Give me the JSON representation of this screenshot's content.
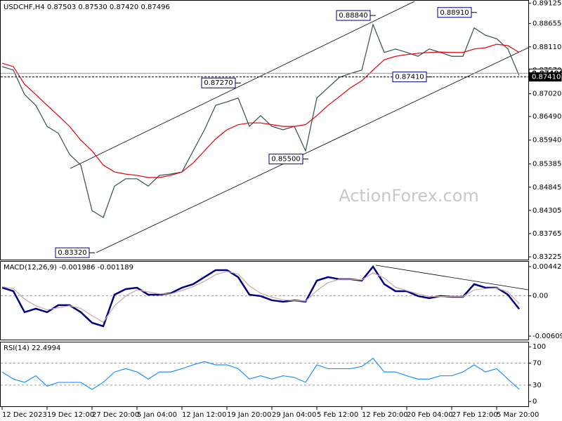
{
  "chart_data": [
    {
      "type": "line",
      "title": "USDCHF,H4  0.87503 0.87530 0.87420 0.87496",
      "watermark": "ActionForex.com",
      "categories": [
        "12 Dec 2023",
        null,
        null,
        null,
        "19 Dec 12:00",
        null,
        null,
        null,
        "27 Dec 20:00",
        null,
        null,
        null,
        "5 Jan 04:00",
        null,
        null,
        null,
        "12 Jan 12:00",
        null,
        null,
        null,
        "19 Jan 20:00",
        null,
        null,
        null,
        "29 Jan 04:00",
        null,
        null,
        null,
        "5 Feb 12:00",
        null,
        null,
        null,
        "12 Feb 20:00",
        null,
        null,
        null,
        "20 Feb 04:00",
        null,
        null,
        null,
        "27 Feb 12:00",
        null,
        null,
        null,
        "5 Mar 20:00",
        null,
        null
      ],
      "series": [
        {
          "color": "#2f4f4f",
          "values": [
            0.8765,
            0.8757,
            0.87,
            0.8675,
            0.8626,
            0.861,
            0.8561,
            0.8536,
            0.843,
            0.8414,
            0.8487,
            0.8504,
            0.8504,
            0.8487,
            0.8512,
            0.8515,
            0.852,
            0.8569,
            0.8618,
            0.8675,
            0.8683,
            0.8692,
            0.8626,
            0.8651,
            0.8626,
            0.8618,
            0.8626,
            0.8569,
            0.8692,
            0.8716,
            0.874,
            0.8749,
            0.8757,
            0.8863,
            0.8798,
            0.8806,
            0.8798,
            0.8789,
            0.8806,
            0.8798,
            0.8789,
            0.8789,
            0.8855,
            0.8838,
            0.883,
            0.8806,
            0.8744
          ]
        },
        {
          "color": "#e8000b",
          "values": [
            0.8773,
            0.8765,
            0.8724,
            0.87,
            0.8675,
            0.8651,
            0.8626,
            0.8594,
            0.8569,
            0.8536,
            0.852,
            0.8515,
            0.8512,
            0.8507,
            0.8507,
            0.8512,
            0.852,
            0.8541,
            0.8569,
            0.8597,
            0.8618,
            0.863,
            0.8634,
            0.8634,
            0.863,
            0.8626,
            0.8626,
            0.863,
            0.8651,
            0.8675,
            0.8695,
            0.8716,
            0.8732,
            0.8757,
            0.8781,
            0.8789,
            0.8793,
            0.8796,
            0.8798,
            0.8799,
            0.8798,
            0.8798,
            0.8806,
            0.8809,
            0.8817,
            0.8814,
            0.8798
          ]
        }
      ],
      "ylim": [
        0.8316,
        0.892
      ],
      "yticks": [
        0.89125,
        0.88655,
        {
          "value": 0.8811,
          "label": "0.88110"
        },
        {
          "value": 0.8757,
          "label": "0.87570"
        },
        {
          "value": 0.8702,
          "label": "0.87020"
        },
        {
          "value": 0.8649,
          "label": "0.86490"
        },
        {
          "value": 0.8594,
          "label": "0.85940"
        },
        0.85385,
        0.84845,
        0.84305,
        0.83765,
        0.83225
      ],
      "price_labels": [
        {
          "value": 0.87496,
          "label": "0.87496"
        },
        {
          "value": 0.8741,
          "label": "0.87410"
        }
      ],
      "annotations": [
        {
          "value": 0.8884,
          "label": "0.88840"
        },
        {
          "value": 0.8891,
          "label": "0.88910"
        },
        {
          "value": 0.8727,
          "label": "0.87270"
        },
        {
          "value": 0.8741,
          "label": "0.87410"
        },
        {
          "value": 0.855,
          "label": "0.85500"
        },
        {
          "value": 0.8332,
          "label": "0.83320"
        }
      ]
    },
    {
      "type": "line",
      "title": "MACD(12,26,9) -0.001986 -0.001189",
      "series": [
        {
          "color": "#000080",
          "values": [
            0.00124,
            0.00071,
            -0.00247,
            -0.00194,
            -0.00247,
            -0.00141,
            -0.00141,
            -0.00247,
            -0.00407,
            -0.0046,
            0.00018,
            0.00103,
            0.00124,
            0.00018,
            0.00018,
            0.00039,
            0.00124,
            0.00177,
            0.00284,
            0.0039,
            0.0039,
            0.00284,
            0.00018,
            -3e-05,
            -0.00067,
            -0.00088,
            -0.00067,
            -0.00088,
            0.00231,
            0.00284,
            0.00252,
            0.00252,
            0.00231,
            0.00443,
            0.00177,
            0.00071,
            0.00071,
            -3e-05,
            -0.00035,
            -3e-05,
            -0.00014,
            -0.00014,
            0.00177,
            0.00124,
            0.00124,
            0.00018,
            -0.001986
          ]
        },
        {
          "color": "#c8a8a8",
          "values": [
            0.0014,
            0.0011,
            -0.0005,
            -0.0015,
            -0.0021,
            -0.0018,
            -0.0015,
            -0.0019,
            -0.003,
            -0.004,
            -0.0015,
            0.0,
            0.0009,
            0.0006,
            0.0003,
            0.0003,
            0.0008,
            0.0014,
            0.0022,
            0.0032,
            0.0037,
            0.0033,
            0.0015,
            0.0004,
            -0.0002,
            -0.0006,
            -0.0007,
            -0.0008,
            0.0008,
            0.002,
            0.0025,
            0.0025,
            0.0024,
            0.0035,
            0.0027,
            0.0013,
            0.0008,
            0.0003,
            -0.0001,
            -0.0001,
            -0.0001,
            -0.0001,
            0.0009,
            0.0011,
            0.0012,
            0.0006,
            -0.001189
          ]
        }
      ],
      "ylim": [
        -0.006729,
        0.005275
      ],
      "yticks": [
        0.004425,
        {
          "value": 0,
          "label": "0.00"
        },
        -0.006092
      ]
    },
    {
      "type": "line",
      "title": "RSI(14) 22.4994",
      "series": [
        {
          "color": "#1e90ff",
          "values": [
            54,
            41,
            35,
            47,
            28,
            35,
            35,
            35,
            22,
            35,
            54,
            60,
            54,
            41,
            54,
            54,
            60,
            67,
            73,
            67,
            67,
            60,
            41,
            47,
            41,
            47,
            44,
            35,
            67,
            60,
            60,
            60,
            64,
            79,
            54,
            54,
            47,
            41,
            41,
            47,
            47,
            54,
            67,
            54,
            60,
            41,
            22.4994
          ]
        }
      ],
      "ylim": [
        -10,
        108
      ],
      "yticks": [
        100,
        70,
        30,
        0
      ]
    }
  ]
}
